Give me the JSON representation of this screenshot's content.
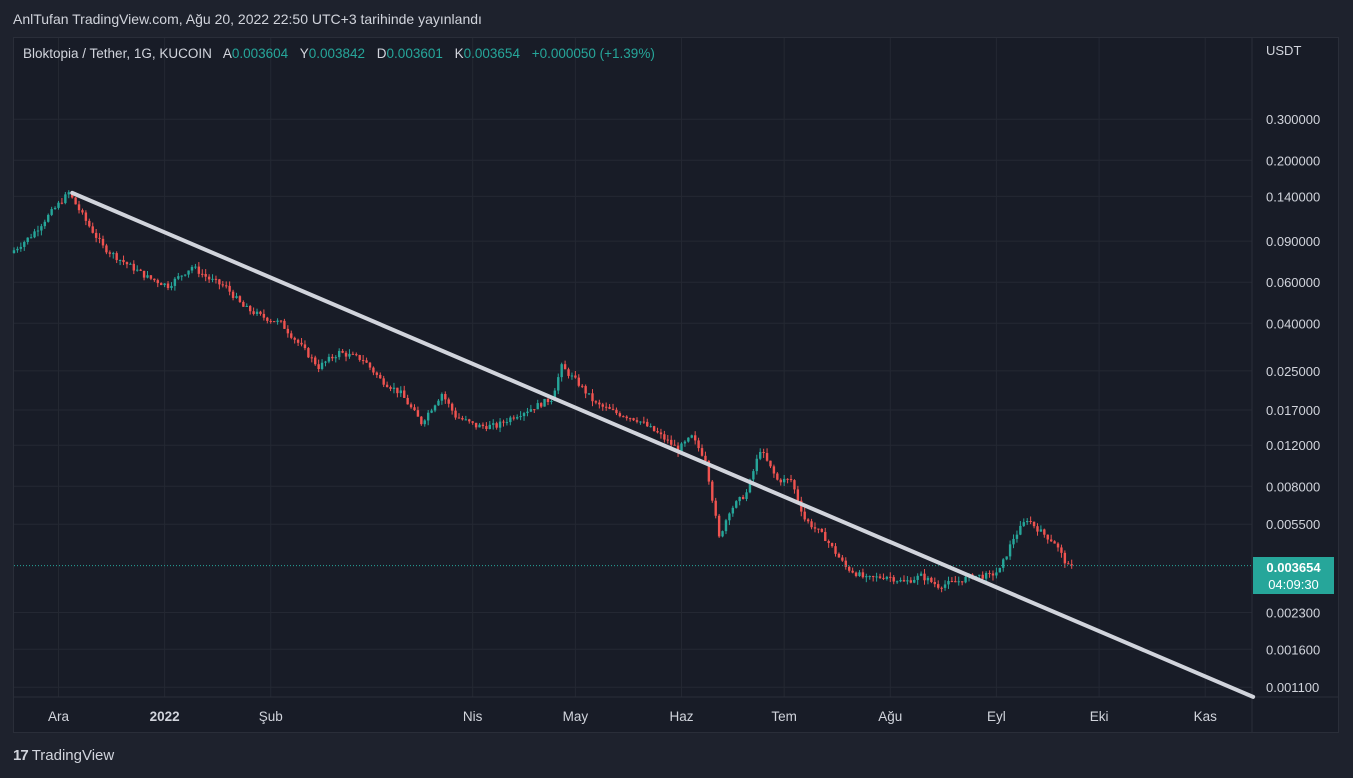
{
  "caption": "AnlTufan TradingView.com, Ağu 20, 2022 22:50 UTC+3 tarihinde yayınlandı",
  "legend": {
    "symbol": "Bloktopia / Tether, 1G, KUCOIN",
    "open_label": "A",
    "open": "0.003604",
    "high_label": "Y",
    "high": "0.003842",
    "low_label": "D",
    "low": "0.003601",
    "close_label": "K",
    "close": "0.003654",
    "change": "+0.000050 (+1.39%)"
  },
  "brand": {
    "logo": "17",
    "name": "TradingView"
  },
  "price_tag": {
    "price": "0.003654",
    "countdown": "04:09:30"
  },
  "colors": {
    "up": "#26a69a",
    "down": "#ef5350",
    "trendline": "#d1d4dc",
    "background": "#181c27"
  },
  "chart_data": {
    "type": "candlestick",
    "y_unit": "USDT",
    "y_scale": "log",
    "y_ticks": [
      "0.300000",
      "0.200000",
      "0.140000",
      "0.090000",
      "0.060000",
      "0.040000",
      "0.025000",
      "0.017000",
      "0.012000",
      "0.008000",
      "0.005500",
      "0.002300",
      "0.001600",
      "0.001100"
    ],
    "x_ticks": [
      "Ara",
      "2022",
      "Şub",
      "Nis",
      "May",
      "Haz",
      "Tem",
      "Ağu",
      "Eyl",
      "Eki",
      "Kas"
    ],
    "x_range": [
      "2021-11-18",
      "2022-11-15"
    ],
    "path": [
      [
        "2021-11-18",
        0.08
      ],
      [
        "2021-11-24",
        0.095
      ],
      [
        "2021-11-30",
        0.12
      ],
      [
        "2021-12-05",
        0.145
      ],
      [
        "2021-12-10",
        0.11
      ],
      [
        "2021-12-15",
        0.085
      ],
      [
        "2021-12-20",
        0.075
      ],
      [
        "2021-12-28",
        0.063
      ],
      [
        "2022-01-03",
        0.058
      ],
      [
        "2022-01-10",
        0.07
      ],
      [
        "2022-01-15",
        0.062
      ],
      [
        "2022-01-20",
        0.057
      ],
      [
        "2022-01-25",
        0.047
      ],
      [
        "2022-01-30",
        0.043
      ],
      [
        "2022-02-05",
        0.04
      ],
      [
        "2022-02-10",
        0.033
      ],
      [
        "2022-02-16",
        0.026
      ],
      [
        "2022-02-22",
        0.03
      ],
      [
        "2022-03-01",
        0.028
      ],
      [
        "2022-03-06",
        0.023
      ],
      [
        "2022-03-12",
        0.02
      ],
      [
        "2022-03-18",
        0.015
      ],
      [
        "2022-03-24",
        0.02
      ],
      [
        "2022-03-28",
        0.016
      ],
      [
        "2022-04-03",
        0.0145
      ],
      [
        "2022-04-09",
        0.0145
      ],
      [
        "2022-04-14",
        0.016
      ],
      [
        "2022-04-20",
        0.0175
      ],
      [
        "2022-04-25",
        0.019
      ],
      [
        "2022-04-28",
        0.026
      ],
      [
        "2022-05-03",
        0.022
      ],
      [
        "2022-05-08",
        0.018
      ],
      [
        "2022-05-14",
        0.0165
      ],
      [
        "2022-05-20",
        0.0155
      ],
      [
        "2022-05-26",
        0.0135
      ],
      [
        "2022-06-01",
        0.0115
      ],
      [
        "2022-06-05",
        0.013
      ],
      [
        "2022-06-09",
        0.0105
      ],
      [
        "2022-06-13",
        0.0048
      ],
      [
        "2022-06-16",
        0.0063
      ],
      [
        "2022-06-21",
        0.0075
      ],
      [
        "2022-06-25",
        0.0115
      ],
      [
        "2022-06-30",
        0.0085
      ],
      [
        "2022-07-04",
        0.0085
      ],
      [
        "2022-07-08",
        0.0058
      ],
      [
        "2022-07-14",
        0.0048
      ],
      [
        "2022-07-20",
        0.0036
      ],
      [
        "2022-07-26",
        0.0032
      ],
      [
        "2022-08-01",
        0.0033
      ],
      [
        "2022-08-06",
        0.0031
      ],
      [
        "2022-08-11",
        0.0033
      ],
      [
        "2022-08-16",
        0.003
      ],
      [
        "2022-08-21",
        0.0031
      ],
      [
        "2022-08-26",
        0.0033
      ],
      [
        "2022-08-31",
        0.0033
      ],
      [
        "2022-09-03",
        0.0035
      ],
      [
        "2022-09-07",
        0.0048
      ],
      [
        "2022-09-11",
        0.0058
      ],
      [
        "2022-09-15",
        0.0051
      ],
      [
        "2022-09-19",
        0.0046
      ],
      [
        "2022-09-23",
        0.0036
      ]
    ],
    "trendline": [
      [
        "2021-12-05",
        0.145
      ],
      [
        "2022-11-15",
        0.001
      ]
    ],
    "last_price": 0.003654
  }
}
